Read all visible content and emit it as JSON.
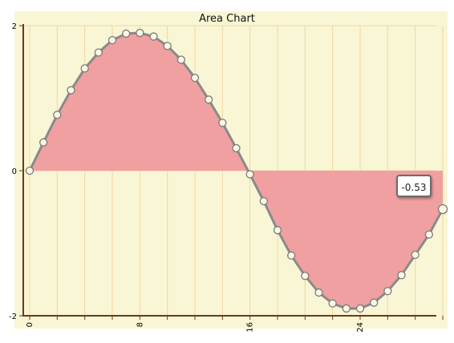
{
  "chart_data": {
    "type": "area",
    "title": "Area Chart",
    "xlabel": "",
    "ylabel": "",
    "xlim": [
      0,
      30
    ],
    "ylim": [
      -2,
      2
    ],
    "x_ticks": [
      "0",
      "8",
      "16",
      "24"
    ],
    "y_ticks": [
      "2",
      "0",
      "-2"
    ],
    "grid": true,
    "series": [
      {
        "x": [
          0,
          1,
          2,
          3,
          4,
          5,
          6,
          7,
          8,
          9,
          10,
          11,
          12,
          13,
          14,
          15,
          16,
          17,
          18,
          19,
          20,
          21,
          22,
          23,
          24,
          25,
          26,
          27,
          28,
          29,
          30
        ],
        "values": [
          0,
          0.39,
          0.77,
          1.11,
          1.41,
          1.63,
          1.8,
          1.89,
          1.9,
          1.85,
          1.72,
          1.53,
          1.28,
          0.98,
          0.66,
          0.31,
          -0.05,
          -0.42,
          -0.82,
          -1.17,
          -1.45,
          -1.68,
          -1.83,
          -1.9,
          -1.9,
          -1.82,
          -1.66,
          -1.44,
          -1.16,
          -0.88,
          -0.53
        ]
      }
    ],
    "colors": {
      "fill": "#f0a0a0",
      "line": "#8a8a8a",
      "background": "#f9f6d5",
      "grid": "#f2d6a0",
      "axis": "#6b3a1c"
    },
    "tooltip": {
      "value": "-0.53"
    }
  }
}
